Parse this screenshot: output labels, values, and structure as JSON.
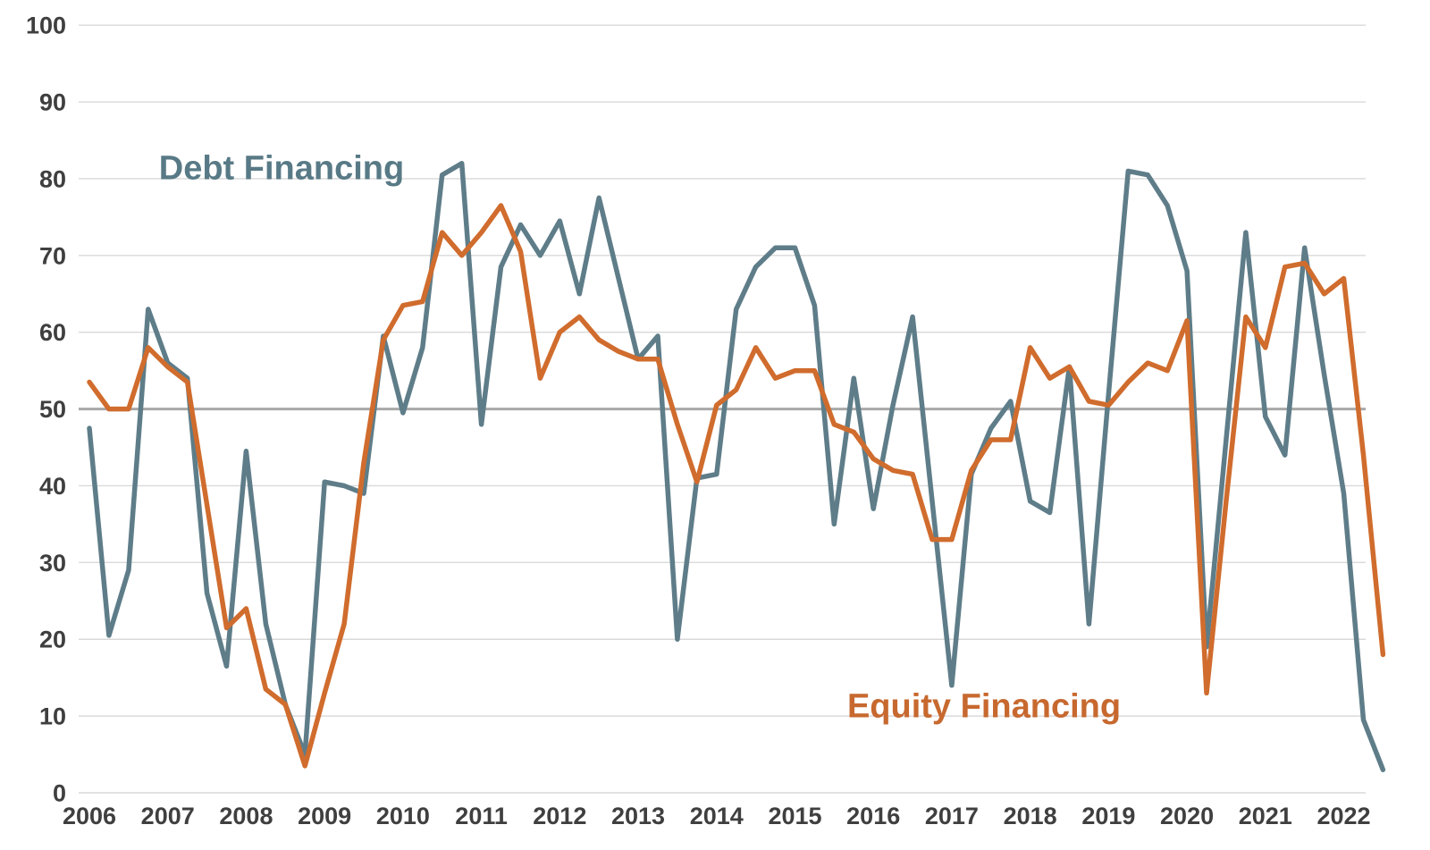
{
  "chart_data": {
    "type": "line",
    "title": "",
    "xlabel": "",
    "ylabel": "",
    "frequency": "quarterly",
    "start_period": "2006Q1",
    "end_period": "2022Q3",
    "ylim": [
      0,
      100
    ],
    "yticks": [
      0,
      10,
      20,
      30,
      40,
      50,
      60,
      70,
      80,
      90,
      100
    ],
    "reference_line_value": 50,
    "grid": "horizontal",
    "legend_position": "inline-annotations",
    "xtick_labels": [
      "2006",
      "2007",
      "2008",
      "2009",
      "2010",
      "2011",
      "2012",
      "2013",
      "2014",
      "2015",
      "2016",
      "2017",
      "2018",
      "2019",
      "2020",
      "2021",
      "2022"
    ],
    "series": [
      {
        "name": "Debt Financing",
        "color": "#5E7D89",
        "label_color": "#587A86",
        "values": [
          47.5,
          20.5,
          29,
          63,
          56,
          54,
          26,
          16.5,
          44.5,
          22,
          11.5,
          5,
          40.5,
          40,
          39,
          59.5,
          49.5,
          58,
          80.5,
          82,
          48,
          68.5,
          74,
          70,
          74.5,
          65,
          77.5,
          67,
          56.5,
          59.5,
          20,
          41,
          41.5,
          63,
          68.5,
          71,
          71,
          63.5,
          35,
          54,
          37,
          50.5,
          62,
          38,
          14,
          41.5,
          47.5,
          51,
          38,
          36.5,
          55.5,
          22,
          52,
          81,
          80.5,
          76.5,
          68,
          19,
          46,
          73,
          49,
          44,
          71,
          54.5,
          39,
          9.5,
          3
        ]
      },
      {
        "name": "Equity Financing",
        "color": "#D06C2D",
        "label_color": "#C7692F",
        "values": [
          53.5,
          50,
          50,
          58,
          55.5,
          53.5,
          37.5,
          21.5,
          24,
          13.5,
          11.5,
          3.5,
          13,
          22,
          43,
          59,
          63.5,
          64,
          73,
          70,
          73,
          76.5,
          70.5,
          54,
          60,
          62,
          59,
          57.5,
          56.5,
          56.5,
          48,
          40.5,
          50.5,
          52.5,
          58,
          54,
          55,
          55,
          48,
          47,
          43.5,
          42,
          41.5,
          33,
          33,
          42,
          46,
          46,
          58,
          54,
          55.5,
          51,
          50.5,
          53.5,
          56,
          55,
          61.5,
          13,
          38,
          62,
          58,
          68.5,
          69,
          65,
          67,
          44,
          18
        ]
      }
    ],
    "colors": {
      "gridline": "#D9D9D9",
      "reference_line": "#A8A8A8",
      "tick_label": "#3F3F3F",
      "background": "#FFFFFF"
    }
  },
  "annotations": {
    "debt_label": "Debt Financing",
    "equity_label": "Equity Financing"
  }
}
